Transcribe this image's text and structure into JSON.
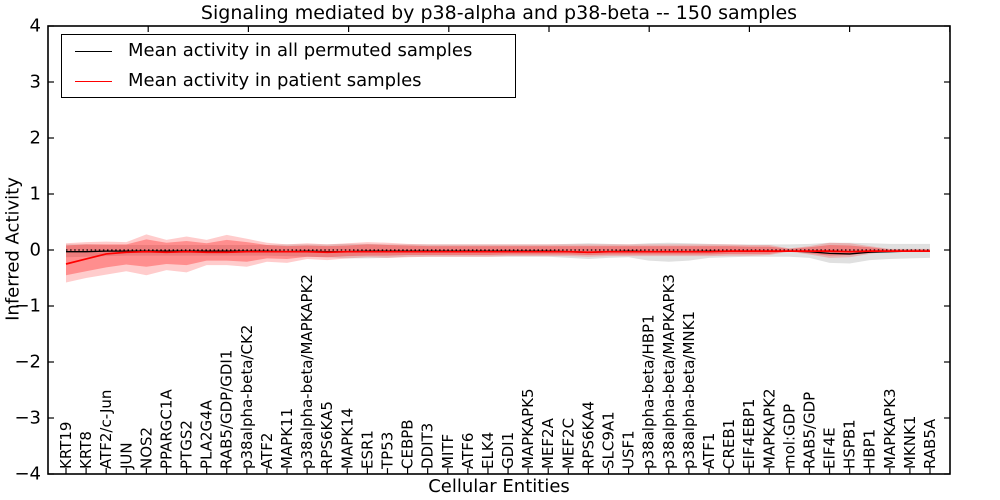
{
  "title": "Signaling mediated by p38-alpha and p38-beta -- 150 samples",
  "legend": {
    "entries": [
      {
        "label": "Mean activity in all permuted samples",
        "color": "#000000"
      },
      {
        "label": "Mean activity in patient samples",
        "color": "#ff0000"
      }
    ]
  },
  "chart_data": {
    "type": "line",
    "title": "Signaling mediated by p38-alpha and p38-beta -- 150 samples",
    "xlabel": "Cellular Entities",
    "ylabel": "Inferred Activity",
    "ylim": [
      -4,
      4
    ],
    "yticks": [
      4,
      3,
      2,
      1,
      0,
      -1,
      -2,
      -3,
      -4
    ],
    "ytick_labels": [
      "4",
      "3",
      "2",
      "1",
      "0",
      "−1",
      "−2",
      "−3",
      "−4"
    ],
    "grid": false,
    "legend_position": "upper left",
    "zero_line_style": "dotted",
    "categories": [
      "KRT19",
      "KRT8",
      "ATF2/c-Jun",
      "JUN",
      "NOS2",
      "PPARGC1A",
      "PTGS2",
      "PLA2G4A",
      "RAB5/GDP/GDI1",
      "p38alpha-beta/CK2",
      "ATF2",
      "MAPK11",
      "p38alpha-beta/MAPKAPK2",
      "RPS6KA5",
      "MAPK14",
      "ESR1",
      "TP53",
      "CEBPB",
      "DDIT3",
      "MITF",
      "ATF6",
      "ELK4",
      "GDI1",
      "MAPKAPK5",
      "MEF2A",
      "MEF2C",
      "RPS6KA4",
      "SLC9A1",
      "USF1",
      "p38alpha-beta/HBP1",
      "p38alpha-beta/MAPKAPK3",
      "p38alpha-beta/MNK1",
      "ATF1",
      "CREB1",
      "EIF4EBP1",
      "MAPKAPK2",
      "mol:GDP",
      "RAB5/GDP",
      "EIF4E",
      "HSPB1",
      "HBP1",
      "MAPKAPK3",
      "MKNK1",
      "RAB5A"
    ],
    "series": [
      {
        "name": "Mean activity in all permuted samples",
        "color": "#000000",
        "values": [
          -0.03,
          -0.03,
          -0.02,
          -0.02,
          -0.02,
          -0.02,
          -0.02,
          -0.02,
          -0.02,
          -0.02,
          -0.02,
          -0.03,
          -0.02,
          -0.03,
          -0.03,
          -0.02,
          -0.02,
          -0.02,
          -0.02,
          -0.02,
          -0.02,
          -0.02,
          -0.02,
          -0.02,
          -0.02,
          -0.03,
          -0.04,
          -0.03,
          -0.02,
          -0.03,
          -0.03,
          -0.03,
          -0.02,
          -0.02,
          -0.02,
          -0.02,
          -0.02,
          -0.03,
          -0.06,
          -0.07,
          -0.04,
          -0.03,
          -0.02,
          -0.02
        ],
        "band": {
          "fill": "#000000",
          "opacity": 0.12,
          "low": [
            -0.13,
            -0.12,
            -0.11,
            -0.1,
            -0.1,
            -0.1,
            -0.1,
            -0.1,
            -0.1,
            -0.1,
            -0.1,
            -0.11,
            -0.12,
            -0.13,
            -0.15,
            -0.15,
            -0.14,
            -0.12,
            -0.12,
            -0.12,
            -0.12,
            -0.12,
            -0.12,
            -0.12,
            -0.12,
            -0.14,
            -0.16,
            -0.14,
            -0.13,
            -0.19,
            -0.21,
            -0.19,
            -0.14,
            -0.13,
            -0.12,
            -0.12,
            -0.12,
            -0.14,
            -0.23,
            -0.24,
            -0.18,
            -0.16,
            -0.15,
            -0.14
          ],
          "high": [
            0.1,
            0.1,
            0.09,
            0.09,
            0.09,
            0.09,
            0.09,
            0.09,
            0.09,
            0.09,
            0.09,
            0.1,
            0.1,
            0.1,
            0.11,
            0.11,
            0.1,
            0.1,
            0.1,
            0.1,
            0.1,
            0.1,
            0.1,
            0.1,
            0.1,
            0.11,
            0.12,
            0.11,
            0.1,
            0.12,
            0.13,
            0.12,
            0.11,
            0.1,
            0.1,
            0.1,
            0.1,
            0.11,
            0.13,
            0.13,
            0.12,
            0.11,
            0.11,
            0.11
          ]
        }
      },
      {
        "name": "Mean activity in patient samples",
        "color": "#ff0000",
        "values": [
          -0.25,
          -0.16,
          -0.07,
          -0.04,
          -0.03,
          -0.04,
          -0.03,
          -0.04,
          -0.04,
          -0.03,
          -0.03,
          -0.03,
          -0.03,
          -0.04,
          -0.03,
          -0.03,
          -0.03,
          -0.03,
          -0.03,
          -0.03,
          -0.03,
          -0.03,
          -0.03,
          -0.03,
          -0.03,
          -0.03,
          -0.04,
          -0.03,
          -0.03,
          -0.03,
          -0.03,
          -0.03,
          -0.03,
          -0.02,
          -0.02,
          -0.02,
          -0.02,
          -0.02,
          -0.02,
          -0.03,
          -0.02,
          -0.02,
          -0.02,
          -0.02
        ],
        "band_outer": {
          "fill": "#ff0000",
          "opacity": 0.2,
          "low": [
            -0.58,
            -0.5,
            -0.44,
            -0.38,
            -0.45,
            -0.36,
            -0.4,
            -0.27,
            -0.27,
            -0.3,
            -0.21,
            -0.23,
            -0.16,
            -0.18,
            -0.15,
            -0.13,
            -0.14,
            -0.13,
            -0.12,
            -0.12,
            -0.12,
            -0.12,
            -0.11,
            -0.11,
            -0.11,
            -0.11,
            -0.12,
            -0.11,
            -0.11,
            -0.11,
            -0.11,
            -0.11,
            -0.11,
            -0.1,
            -0.1,
            -0.09,
            -0.03,
            -0.08,
            -0.14,
            -0.13,
            -0.07,
            -0.02,
            -0.02,
            -0.02
          ],
          "high": [
            0.12,
            0.14,
            0.15,
            0.14,
            0.28,
            0.18,
            0.24,
            0.18,
            0.27,
            0.2,
            0.13,
            0.1,
            0.12,
            0.1,
            0.12,
            0.14,
            0.13,
            0.11,
            0.1,
            0.1,
            0.1,
            0.1,
            0.1,
            0.1,
            0.1,
            0.1,
            0.1,
            0.1,
            0.1,
            0.1,
            0.1,
            0.1,
            0.1,
            0.1,
            0.09,
            0.09,
            0.03,
            0.07,
            0.13,
            0.12,
            0.07,
            0.02,
            0.02,
            0.02
          ]
        },
        "band_inner": {
          "fill": "#ff0000",
          "opacity": 0.3,
          "low": [
            -0.45,
            -0.38,
            -0.31,
            -0.26,
            -0.3,
            -0.25,
            -0.27,
            -0.19,
            -0.19,
            -0.21,
            -0.15,
            -0.16,
            -0.12,
            -0.13,
            -0.11,
            -0.1,
            -0.1,
            -0.09,
            -0.09,
            -0.09,
            -0.09,
            -0.09,
            -0.08,
            -0.08,
            -0.08,
            -0.08,
            -0.09,
            -0.08,
            -0.08,
            -0.08,
            -0.08,
            -0.08,
            -0.08,
            -0.07,
            -0.07,
            -0.07,
            -0.02,
            -0.06,
            -0.1,
            -0.09,
            -0.05,
            -0.01,
            -0.01,
            -0.01
          ],
          "high": [
            0.08,
            0.1,
            0.1,
            0.1,
            0.19,
            0.13,
            0.16,
            0.12,
            0.18,
            0.14,
            0.09,
            0.07,
            0.08,
            0.07,
            0.08,
            0.1,
            0.09,
            0.08,
            0.07,
            0.07,
            0.07,
            0.07,
            0.07,
            0.07,
            0.07,
            0.07,
            0.07,
            0.07,
            0.07,
            0.07,
            0.07,
            0.07,
            0.07,
            0.07,
            0.06,
            0.06,
            0.02,
            0.05,
            0.09,
            0.08,
            0.05,
            0.01,
            0.01,
            0.01
          ]
        }
      }
    ]
  }
}
